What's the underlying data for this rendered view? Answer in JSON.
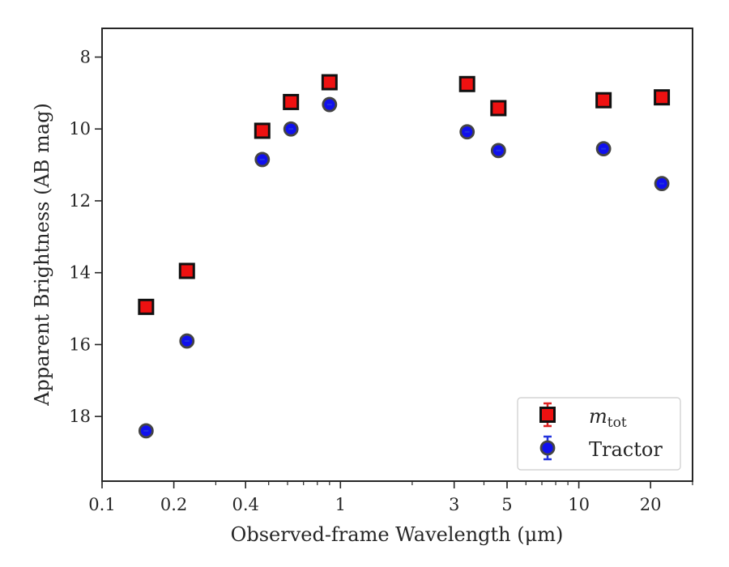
{
  "chart_data": {
    "type": "scatter",
    "title": "",
    "xlabel": "Observed-frame Wavelength (μm)",
    "ylabel": "Apparent Brightness (AB mag)",
    "xscale": "log",
    "xlim": [
      0.1,
      30
    ],
    "ylim": [
      19.8,
      7.2
    ],
    "y_inverted": true,
    "grid": false,
    "legend_position": "lower right",
    "xticks": [
      {
        "value": 0.1,
        "label": "0.1"
      },
      {
        "value": 0.2,
        "label": "0.2"
      },
      {
        "value": 0.4,
        "label": "0.4"
      },
      {
        "value": 1,
        "label": "1"
      },
      {
        "value": 3,
        "label": "3"
      },
      {
        "value": 5,
        "label": "5"
      },
      {
        "value": 10,
        "label": "10"
      },
      {
        "value": 20,
        "label": "20"
      }
    ],
    "yticks": [
      {
        "value": 8,
        "label": "8"
      },
      {
        "value": 10,
        "label": "10"
      },
      {
        "value": 12,
        "label": "12"
      },
      {
        "value": 14,
        "label": "14"
      },
      {
        "value": 16,
        "label": "16"
      },
      {
        "value": 18,
        "label": "18"
      }
    ],
    "series": [
      {
        "name": "m_tot",
        "legend_label": {
          "main": "m",
          "sub": "tot"
        },
        "marker": "square",
        "color": "#ee1111",
        "edgecolor": "#111111",
        "errorbar_color": "#dd2222",
        "x": [
          0.153,
          0.227,
          0.47,
          0.62,
          0.9,
          3.4,
          4.6,
          12.7,
          22.3
        ],
        "y": [
          14.95,
          13.95,
          10.05,
          9.25,
          8.7,
          8.75,
          9.42,
          9.2,
          9.12
        ]
      },
      {
        "name": "Tractor",
        "marker": "circle",
        "color": "#1010ee",
        "edgecolor": "#444444",
        "errorbar_color": "#2233dd",
        "x": [
          0.153,
          0.227,
          0.47,
          0.62,
          0.9,
          3.4,
          4.6,
          12.7,
          22.3
        ],
        "y": [
          18.4,
          15.9,
          10.85,
          10.0,
          9.32,
          10.08,
          10.6,
          10.55,
          11.52
        ]
      }
    ]
  }
}
